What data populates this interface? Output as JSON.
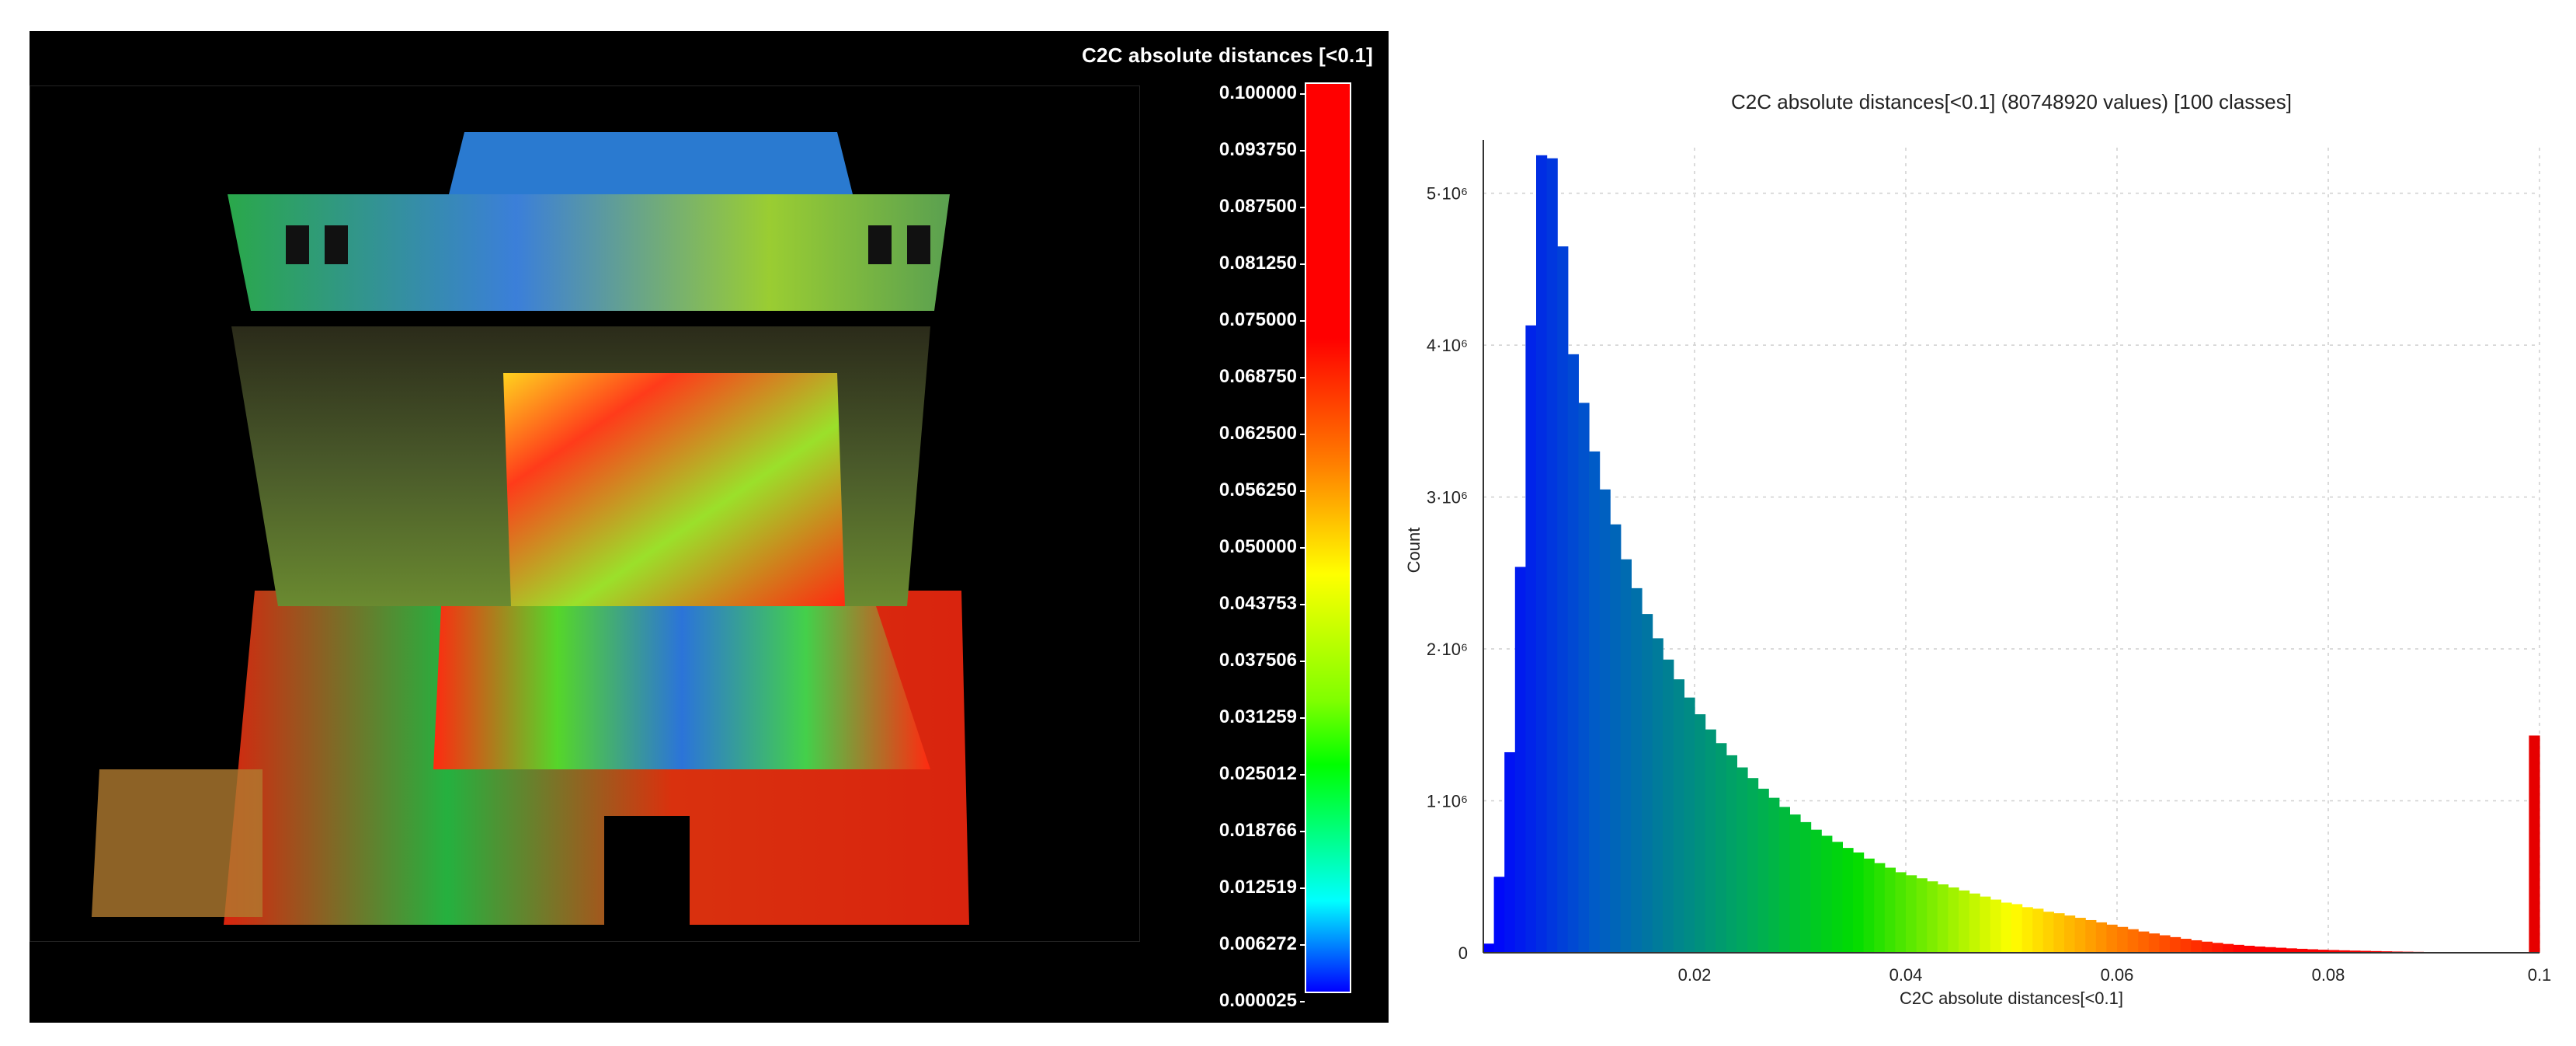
{
  "viewer": {
    "scalar_title": "C2C absolute distances [<0.1]",
    "scale_labels": [
      "0.100000",
      "0.093750",
      "0.087500",
      "0.081250",
      "0.075000",
      "0.068750",
      "0.062500",
      "0.056250",
      "0.050000",
      "0.043753",
      "0.037506",
      "0.031259",
      "0.025012",
      "0.018766",
      "0.012519",
      "0.006272",
      "0.000025"
    ]
  },
  "chart_data": {
    "type": "bar",
    "title": "C2C absolute distances[<0.1] (80748920 values)  [100 classes]",
    "xlabel": "C2C absolute distances[<0.1]",
    "ylabel": "Count",
    "xlim": [
      0,
      0.1
    ],
    "ylim": [
      0,
      5300000
    ],
    "grid": true,
    "x_ticks": [
      "0.02",
      "0.04",
      "0.06",
      "0.08",
      "0.1"
    ],
    "y_ticks": [
      "0",
      "1·10⁶",
      "2·10⁶",
      "3·10⁶",
      "4·10⁶",
      "5·10⁶"
    ],
    "bin_width": 0.001,
    "values": [
      60000,
      500000,
      1320000,
      2540000,
      4130000,
      5250000,
      5230000,
      4650000,
      3940000,
      3620000,
      3300000,
      3050000,
      2820000,
      2590000,
      2400000,
      2230000,
      2070000,
      1930000,
      1800000,
      1680000,
      1570000,
      1470000,
      1380000,
      1300000,
      1220000,
      1150000,
      1080000,
      1020000,
      960000,
      910000,
      860000,
      810000,
      770000,
      730000,
      690000,
      660000,
      620000,
      590000,
      560000,
      530000,
      510000,
      490000,
      470000,
      450000,
      430000,
      410000,
      390000,
      370000,
      350000,
      330000,
      320000,
      300000,
      290000,
      270000,
      260000,
      245000,
      230000,
      215000,
      200000,
      185000,
      170000,
      155000,
      140000,
      127000,
      115000,
      103000,
      92000,
      82000,
      73000,
      65000,
      58000,
      52000,
      46000,
      41000,
      37000,
      33000,
      29000,
      26000,
      23000,
      20000,
      18000,
      16000,
      14000,
      12500,
      11000,
      9500,
      8000,
      7000,
      6000,
      5000,
      4000,
      3500,
      3000,
      2500,
      2000,
      1700,
      1400,
      1200,
      1000,
      1430000
    ]
  }
}
